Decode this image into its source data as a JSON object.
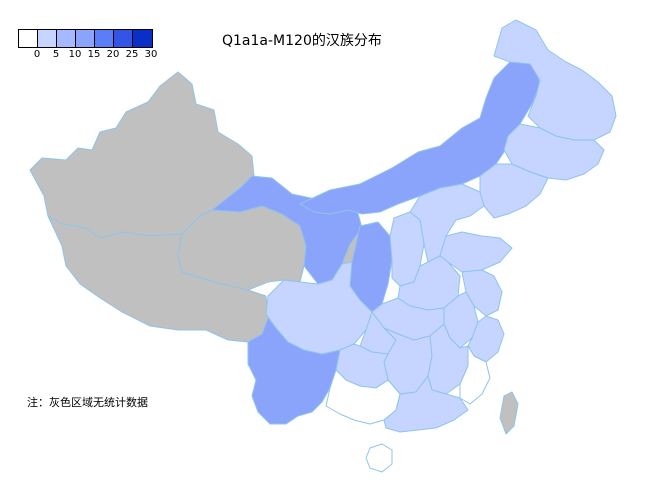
{
  "title": "Q1a1a-M120的汉族分布",
  "note": "注：灰色区域无统计数据",
  "legend": {
    "ticks": [
      "0",
      "5",
      "10",
      "15",
      "20",
      "25",
      "30"
    ],
    "colors": [
      "#ffffff",
      "#c6d5ff",
      "#a4b9ff",
      "#8aa4fb",
      "#5b7df5",
      "#3355e6",
      "#0a2fc9"
    ]
  },
  "colors": {
    "no_data": "#c0c0c0",
    "border": "#8ec4ea"
  },
  "regions": [
    {
      "name": "Xinjiang",
      "fill": "no_data"
    },
    {
      "name": "Tibet",
      "fill": "no_data"
    },
    {
      "name": "Qinghai",
      "fill": "no_data"
    },
    {
      "name": "Ningxia",
      "fill": "no_data"
    },
    {
      "name": "Gansu",
      "level": 3
    },
    {
      "name": "Inner Mongolia",
      "level": 3
    },
    {
      "name": "Shaanxi",
      "level": 3
    },
    {
      "name": "Yunnan",
      "level": 3
    },
    {
      "name": "Heilongjiang",
      "level": 1
    },
    {
      "name": "Jilin",
      "level": 1
    },
    {
      "name": "Liaoning",
      "level": 1
    },
    {
      "name": "Hebei",
      "level": 1
    },
    {
      "name": "Shanxi",
      "level": 1
    },
    {
      "name": "Shandong",
      "level": 1
    },
    {
      "name": "Henan",
      "level": 1
    },
    {
      "name": "Hubei",
      "level": 1
    },
    {
      "name": "Sichuan",
      "level": 1
    },
    {
      "name": "Chongqing",
      "level": 1
    },
    {
      "name": "Anhui",
      "level": 1
    },
    {
      "name": "Jiangsu",
      "level": 1
    },
    {
      "name": "Zhejiang",
      "level": 1
    },
    {
      "name": "Hunan",
      "level": 1
    },
    {
      "name": "Jiangxi",
      "level": 1
    },
    {
      "name": "Guizhou",
      "level": 1
    },
    {
      "name": "Guangdong",
      "level": 1
    },
    {
      "name": "Taiwan",
      "fill": "no_data"
    },
    {
      "name": "Guangxi",
      "level": 0
    },
    {
      "name": "Fujian",
      "level": 0
    },
    {
      "name": "Hainan",
      "level": 0
    }
  ]
}
